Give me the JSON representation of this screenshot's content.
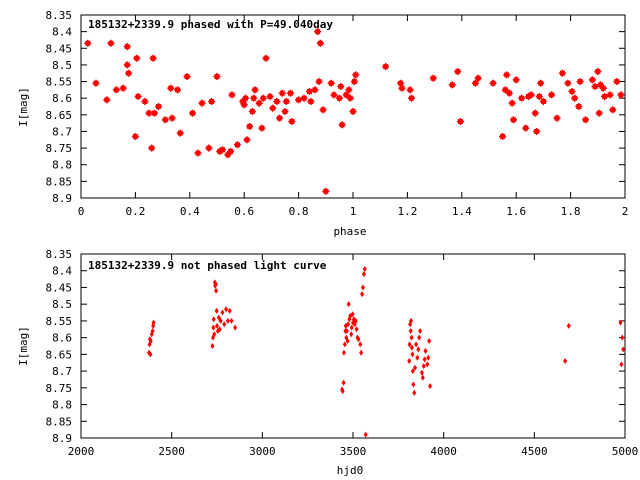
{
  "chart_data": [
    {
      "type": "scatter",
      "title": "185132+2339.9 phased with P=49.040day",
      "xlabel": "phase",
      "ylabel": "I[mag]",
      "xlim": [
        0,
        2
      ],
      "ylim": [
        8.9,
        8.35
      ],
      "y_inverted": true,
      "grid": false,
      "marker_color": "#ff0000",
      "marker": "star",
      "xticks": [
        "0",
        "0.2",
        "0.4",
        "0.6",
        "0.8",
        "1",
        "1.2",
        "1.4",
        "1.6",
        "1.8",
        "2"
      ],
      "xtick_values": [
        0,
        0.2,
        0.4,
        0.6,
        0.8,
        1.0,
        1.2,
        1.4,
        1.6,
        1.8,
        2.0
      ],
      "yticks": [
        "8.35",
        "8.4",
        "8.45",
        "8.5",
        "8.55",
        "8.6",
        "8.65",
        "8.7",
        "8.75",
        "8.8",
        "8.85",
        "8.9"
      ],
      "ytick_values": [
        8.35,
        8.4,
        8.45,
        8.5,
        8.55,
        8.6,
        8.65,
        8.7,
        8.75,
        8.8,
        8.85,
        8.9
      ],
      "points": [
        [
          0.025,
          8.435
        ],
        [
          0.055,
          8.555
        ],
        [
          0.095,
          8.605
        ],
        [
          0.11,
          8.435
        ],
        [
          0.13,
          8.575
        ],
        [
          0.155,
          8.57
        ],
        [
          0.17,
          8.445
        ],
        [
          0.17,
          8.5
        ],
        [
          0.175,
          8.525
        ],
        [
          0.2,
          8.715
        ],
        [
          0.205,
          8.48
        ],
        [
          0.21,
          8.595
        ],
        [
          0.235,
          8.61
        ],
        [
          0.25,
          8.645
        ],
        [
          0.26,
          8.75
        ],
        [
          0.265,
          8.48
        ],
        [
          0.27,
          8.645
        ],
        [
          0.285,
          8.625
        ],
        [
          0.31,
          8.665
        ],
        [
          0.33,
          8.57
        ],
        [
          0.335,
          8.66
        ],
        [
          0.355,
          8.575
        ],
        [
          0.365,
          8.705
        ],
        [
          0.39,
          8.535
        ],
        [
          0.41,
          8.645
        ],
        [
          0.43,
          8.765
        ],
        [
          0.445,
          8.615
        ],
        [
          0.47,
          8.75
        ],
        [
          0.48,
          8.61
        ],
        [
          0.5,
          8.535
        ],
        [
          0.51,
          8.76
        ],
        [
          0.52,
          8.755
        ],
        [
          0.54,
          8.77
        ],
        [
          0.55,
          8.76
        ],
        [
          0.555,
          8.59
        ],
        [
          0.575,
          8.74
        ],
        [
          0.595,
          8.61
        ],
        [
          0.6,
          8.62
        ],
        [
          0.605,
          8.6
        ],
        [
          0.61,
          8.725
        ],
        [
          0.62,
          8.685
        ],
        [
          0.63,
          8.64
        ],
        [
          0.635,
          8.6
        ],
        [
          0.64,
          8.575
        ],
        [
          0.655,
          8.615
        ],
        [
          0.665,
          8.69
        ],
        [
          0.67,
          8.6
        ],
        [
          0.68,
          8.48
        ],
        [
          0.695,
          8.595
        ],
        [
          0.705,
          8.63
        ],
        [
          0.72,
          8.61
        ],
        [
          0.73,
          8.66
        ],
        [
          0.74,
          8.585
        ],
        [
          0.75,
          8.64
        ],
        [
          0.755,
          8.61
        ],
        [
          0.77,
          8.585
        ],
        [
          0.775,
          8.67
        ],
        [
          0.8,
          8.605
        ],
        [
          0.82,
          8.6
        ],
        [
          0.84,
          8.58
        ],
        [
          0.845,
          8.61
        ],
        [
          0.86,
          8.575
        ],
        [
          0.87,
          8.4
        ],
        [
          0.875,
          8.55
        ],
        [
          0.88,
          8.435
        ],
        [
          0.89,
          8.635
        ],
        [
          0.9,
          8.88
        ],
        [
          0.92,
          8.555
        ],
        [
          0.93,
          8.59
        ],
        [
          0.95,
          8.6
        ],
        [
          0.955,
          8.565
        ],
        [
          0.96,
          8.68
        ],
        [
          0.975,
          8.59
        ],
        [
          0.985,
          8.575
        ],
        [
          0.99,
          8.6
        ],
        [
          1.0,
          8.64
        ],
        [
          1.005,
          8.55
        ],
        [
          1.01,
          8.53
        ],
        [
          1.12,
          8.505
        ],
        [
          1.175,
          8.555
        ],
        [
          1.18,
          8.57
        ],
        [
          1.21,
          8.575
        ],
        [
          1.215,
          8.6
        ],
        [
          1.295,
          8.54
        ],
        [
          1.365,
          8.56
        ],
        [
          1.385,
          8.52
        ],
        [
          1.395,
          8.67
        ],
        [
          1.45,
          8.555
        ],
        [
          1.46,
          8.54
        ],
        [
          1.515,
          8.555
        ],
        [
          1.55,
          8.715
        ],
        [
          1.56,
          8.575
        ],
        [
          1.565,
          8.53
        ],
        [
          1.575,
          8.585
        ],
        [
          1.585,
          8.615
        ],
        [
          1.59,
          8.665
        ],
        [
          1.6,
          8.545
        ],
        [
          1.62,
          8.6
        ],
        [
          1.635,
          8.69
        ],
        [
          1.645,
          8.595
        ],
        [
          1.655,
          8.59
        ],
        [
          1.67,
          8.645
        ],
        [
          1.675,
          8.7
        ],
        [
          1.685,
          8.595
        ],
        [
          1.69,
          8.555
        ],
        [
          1.7,
          8.61
        ],
        [
          1.73,
          8.59
        ],
        [
          1.75,
          8.66
        ],
        [
          1.77,
          8.525
        ],
        [
          1.79,
          8.555
        ],
        [
          1.805,
          8.58
        ],
        [
          1.815,
          8.6
        ],
        [
          1.83,
          8.625
        ],
        [
          1.835,
          8.55
        ],
        [
          1.855,
          8.665
        ],
        [
          1.88,
          8.545
        ],
        [
          1.89,
          8.565
        ],
        [
          1.9,
          8.52
        ],
        [
          1.905,
          8.645
        ],
        [
          1.91,
          8.56
        ],
        [
          1.92,
          8.57
        ],
        [
          1.925,
          8.595
        ],
        [
          1.945,
          8.59
        ],
        [
          1.955,
          8.635
        ],
        [
          1.97,
          8.55
        ],
        [
          1.985,
          8.59
        ]
      ]
    },
    {
      "type": "scatter",
      "title": "185132+2339.9 not phased light curve",
      "xlabel": "hjd0",
      "ylabel": "I[mag]",
      "xlim": [
        2000,
        5000
      ],
      "ylim": [
        8.9,
        8.35
      ],
      "y_inverted": true,
      "grid": false,
      "marker_color": "#ff0000",
      "marker": "diamond",
      "xticks": [
        "2000",
        "2500",
        "3000",
        "3500",
        "4000",
        "4500",
        "5000"
      ],
      "xtick_values": [
        2000,
        2500,
        3000,
        3500,
        4000,
        4500,
        5000
      ],
      "yticks": [
        "8.35",
        "8.4",
        "8.45",
        "8.5",
        "8.55",
        "8.6",
        "8.65",
        "8.7",
        "8.75",
        "8.8",
        "8.85",
        "8.9"
      ],
      "ytick_values": [
        8.35,
        8.4,
        8.45,
        8.5,
        8.55,
        8.6,
        8.65,
        8.7,
        8.75,
        8.8,
        8.85,
        8.9
      ],
      "points": [
        [
          2375,
          8.645
        ],
        [
          2378,
          8.62
        ],
        [
          2380,
          8.605
        ],
        [
          2383,
          8.65
        ],
        [
          2385,
          8.61
        ],
        [
          2390,
          8.59
        ],
        [
          2395,
          8.58
        ],
        [
          2398,
          8.565
        ],
        [
          2400,
          8.555
        ],
        [
          2725,
          8.625
        ],
        [
          2728,
          8.6
        ],
        [
          2730,
          8.57
        ],
        [
          2732,
          8.545
        ],
        [
          2735,
          8.59
        ],
        [
          2738,
          8.435
        ],
        [
          2740,
          8.445
        ],
        [
          2743,
          8.44
        ],
        [
          2745,
          8.46
        ],
        [
          2748,
          8.52
        ],
        [
          2750,
          8.565
        ],
        [
          2755,
          8.58
        ],
        [
          2760,
          8.54
        ],
        [
          2765,
          8.575
        ],
        [
          2770,
          8.55
        ],
        [
          2780,
          8.525
        ],
        [
          2790,
          8.56
        ],
        [
          2800,
          8.515
        ],
        [
          2810,
          8.55
        ],
        [
          2820,
          8.52
        ],
        [
          2830,
          8.55
        ],
        [
          2850,
          8.57
        ],
        [
          3440,
          8.755
        ],
        [
          3443,
          8.76
        ],
        [
          3448,
          8.735
        ],
        [
          3450,
          8.645
        ],
        [
          3455,
          8.62
        ],
        [
          3458,
          8.58
        ],
        [
          3460,
          8.565
        ],
        [
          3463,
          8.6
        ],
        [
          3466,
          8.58
        ],
        [
          3470,
          8.61
        ],
        [
          3473,
          8.56
        ],
        [
          3476,
          8.5
        ],
        [
          3480,
          8.545
        ],
        [
          3485,
          8.535
        ],
        [
          3490,
          8.59
        ],
        [
          3493,
          8.57
        ],
        [
          3498,
          8.53
        ],
        [
          3500,
          8.555
        ],
        [
          3505,
          8.545
        ],
        [
          3510,
          8.56
        ],
        [
          3515,
          8.55
        ],
        [
          3520,
          8.575
        ],
        [
          3525,
          8.6
        ],
        [
          3530,
          8.605
        ],
        [
          3540,
          8.62
        ],
        [
          3545,
          8.645
        ],
        [
          3550,
          8.47
        ],
        [
          3555,
          8.45
        ],
        [
          3560,
          8.41
        ],
        [
          3565,
          8.395
        ],
        [
          3570,
          8.89
        ],
        [
          3810,
          8.67
        ],
        [
          3812,
          8.62
        ],
        [
          3815,
          8.56
        ],
        [
          3818,
          8.58
        ],
        [
          3820,
          8.55
        ],
        [
          3823,
          8.6
        ],
        [
          3825,
          8.63
        ],
        [
          3828,
          8.65
        ],
        [
          3830,
          8.7
        ],
        [
          3833,
          8.74
        ],
        [
          3838,
          8.765
        ],
        [
          3842,
          8.69
        ],
        [
          3848,
          8.62
        ],
        [
          3855,
          8.66
        ],
        [
          3860,
          8.635
        ],
        [
          3865,
          8.6
        ],
        [
          3870,
          8.58
        ],
        [
          3880,
          8.705
        ],
        [
          3885,
          8.72
        ],
        [
          3890,
          8.685
        ],
        [
          3895,
          8.665
        ],
        [
          3900,
          8.64
        ],
        [
          3910,
          8.68
        ],
        [
          3915,
          8.66
        ],
        [
          3920,
          8.61
        ],
        [
          3925,
          8.745
        ],
        [
          4670,
          8.67
        ],
        [
          4690,
          8.565
        ],
        [
          4975,
          8.555
        ],
        [
          4980,
          8.68
        ],
        [
          4985,
          8.6
        ],
        [
          4990,
          8.635
        ]
      ]
    }
  ]
}
